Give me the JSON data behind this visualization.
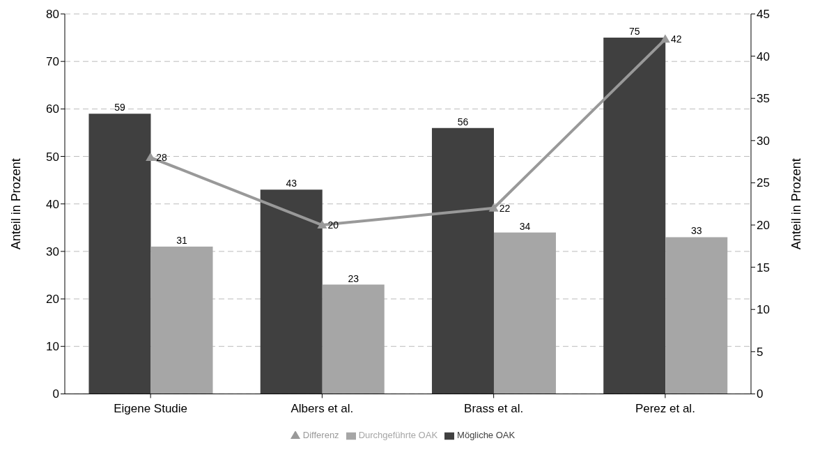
{
  "chart_data": {
    "type": "bar",
    "categories": [
      "Eigene Studie",
      "Albers et al.",
      "Brass et al.",
      "Perez et al."
    ],
    "series": [
      {
        "name": "Mögliche OAK",
        "color": "#404040",
        "values": [
          59,
          43,
          56,
          75
        ]
      },
      {
        "name": "Durchgeführte OAK",
        "color": "#a6a6a6",
        "values": [
          31,
          23,
          34,
          33
        ]
      },
      {
        "name": "Differenz",
        "type": "line",
        "axis": "y2",
        "color": "#999999",
        "marker": "triangle",
        "values": [
          28,
          20,
          22,
          42
        ]
      }
    ],
    "ylabel": "Anteil in Prozent",
    "y2label": "Anteil in Prozent",
    "ylim": [
      0,
      80
    ],
    "yticks": [
      0,
      10,
      20,
      30,
      40,
      50,
      60,
      70,
      80
    ],
    "y2lim": [
      0,
      45
    ],
    "y2ticks": [
      0,
      5,
      10,
      15,
      20,
      25,
      30,
      35,
      40,
      45
    ],
    "grid": "y",
    "legend": "bottom",
    "data_labels": true
  }
}
